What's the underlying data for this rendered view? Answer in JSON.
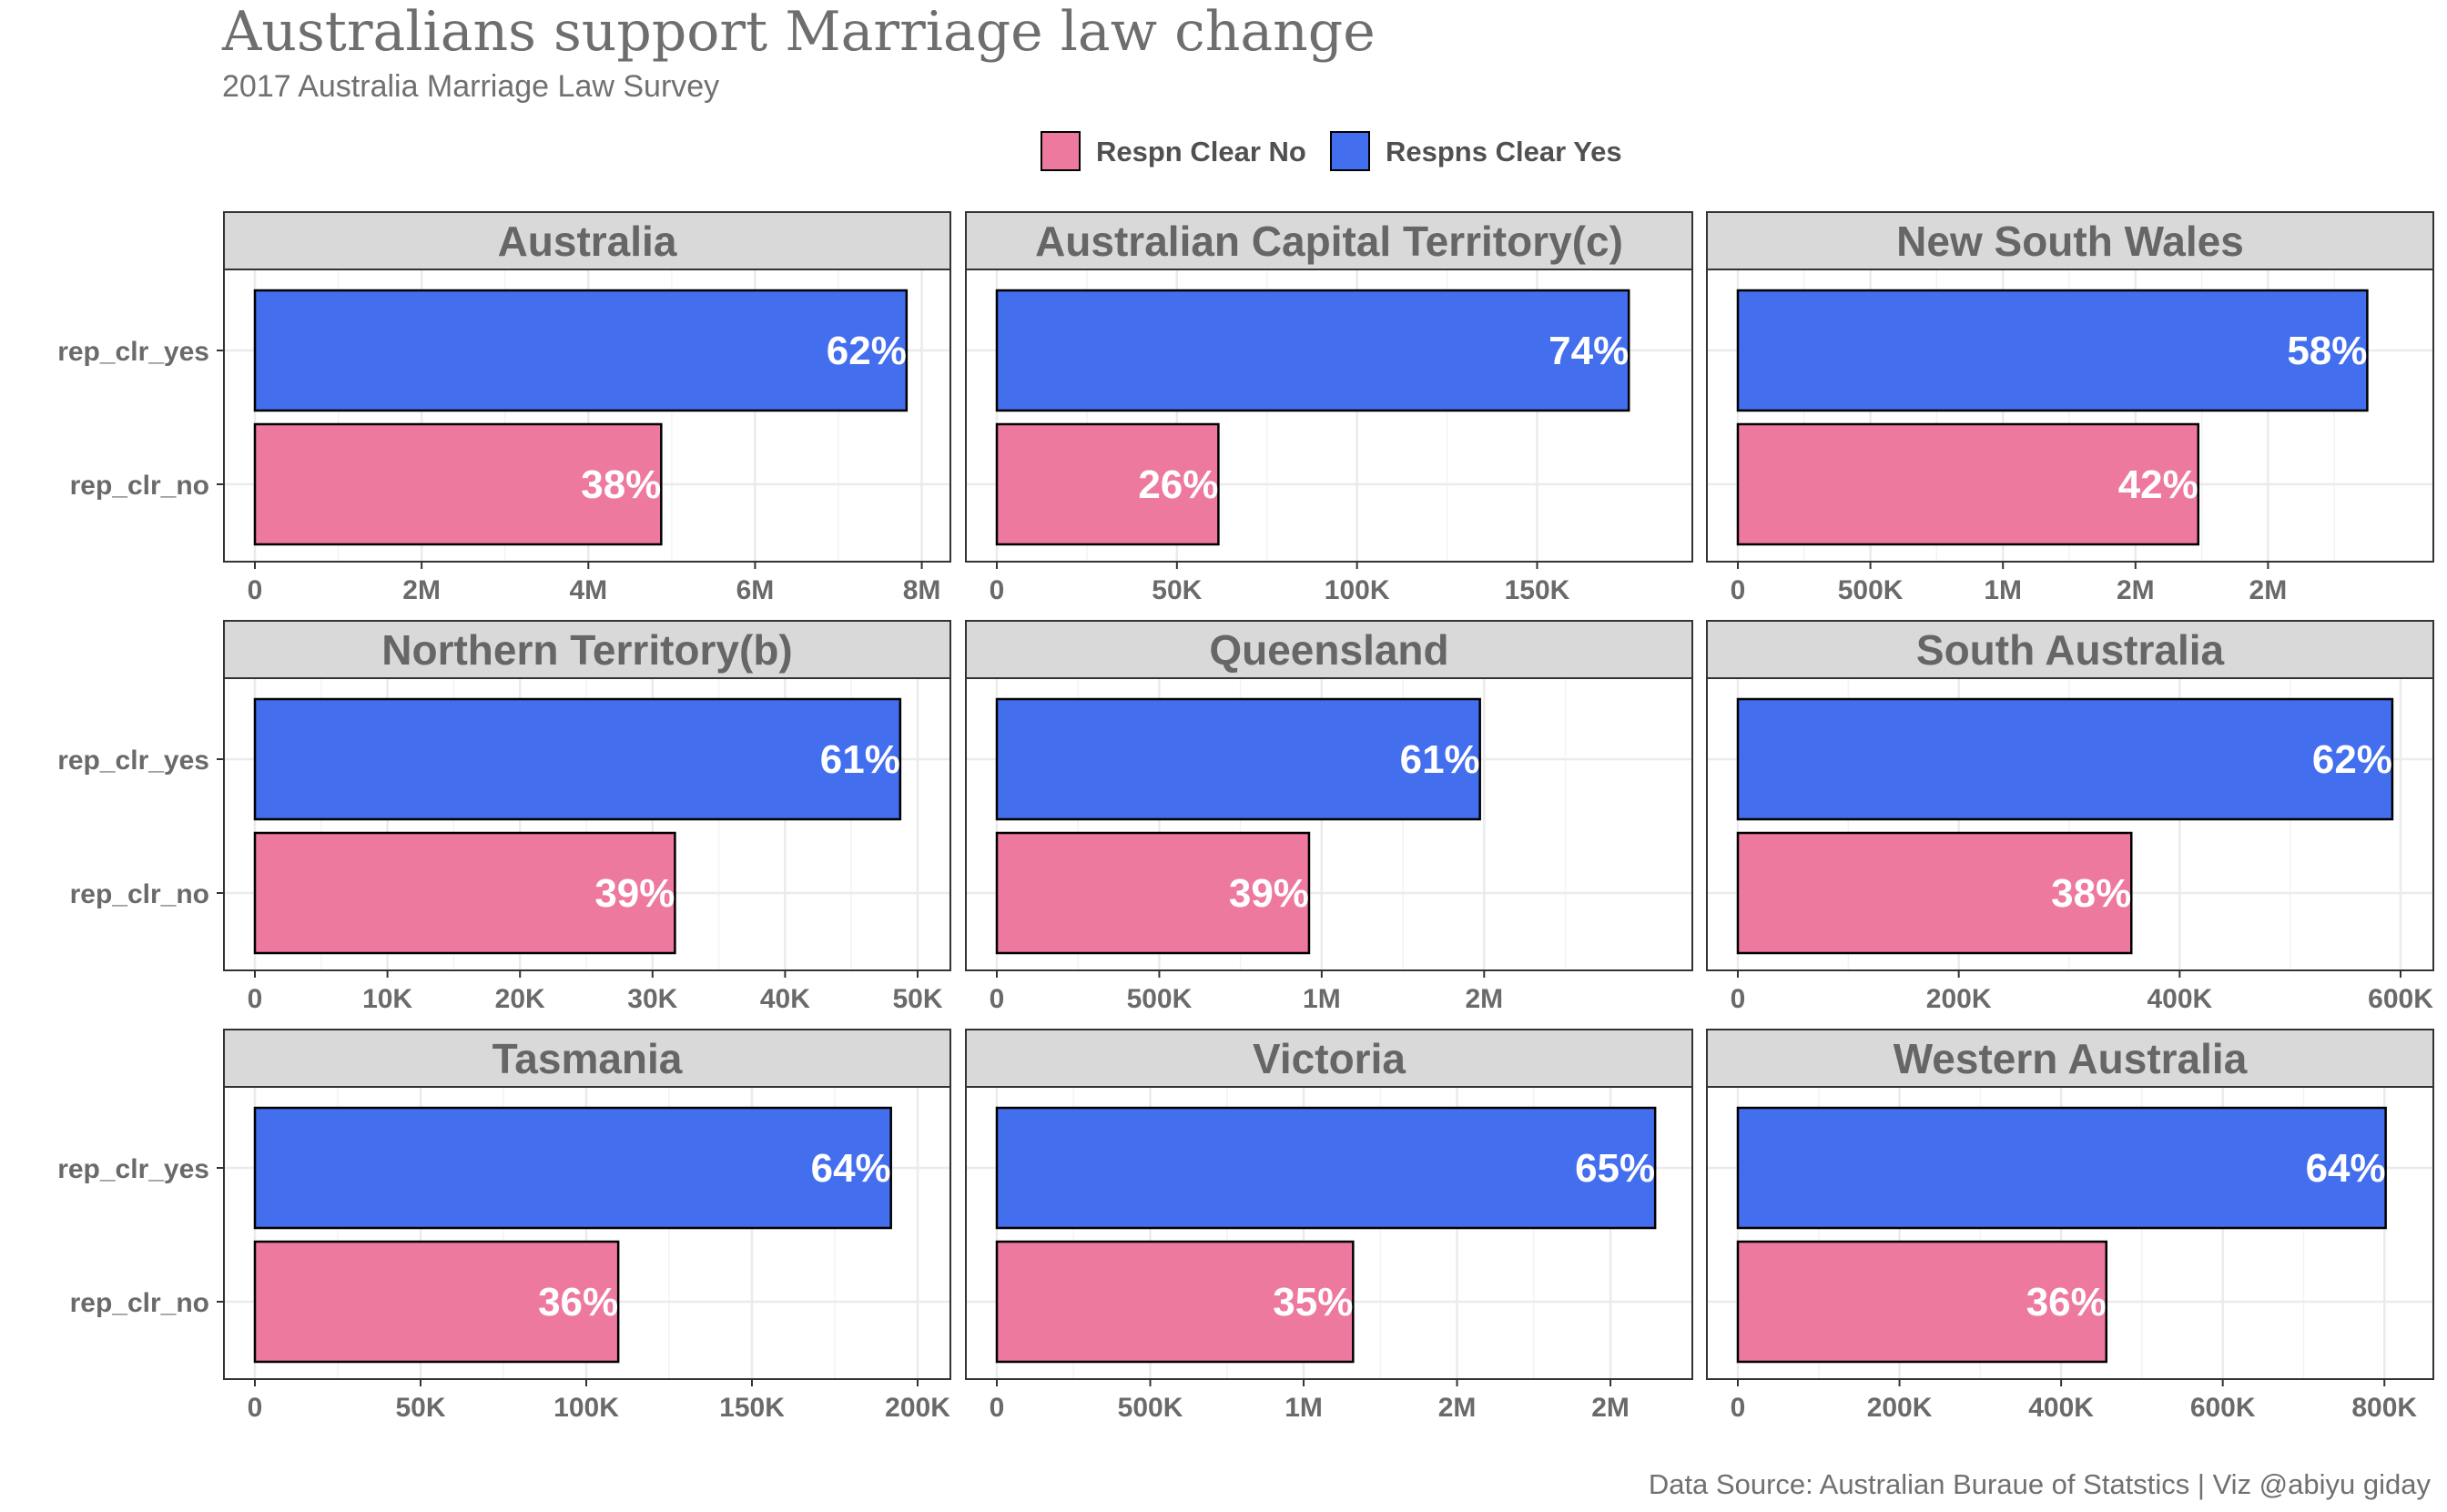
{
  "chart_data": {
    "type": "bar",
    "orientation": "horizontal",
    "title": "Australians support Marriage law change",
    "subtitle": "2017 Australia Marriage Law Survey",
    "caption": "Data Source: Australian Buraue of Statstics | Viz @abiyu giday",
    "categories": [
      "rep_clr_yes",
      "rep_clr_no"
    ],
    "legend": {
      "position": "top",
      "entries": [
        {
          "name": "Respn Clear No",
          "color": "#ee799f"
        },
        {
          "name": "Respns Clear Yes",
          "color": "#436eee"
        }
      ]
    },
    "colors": {
      "yes": "#436eee",
      "no": "#ee799f",
      "strip": "#d9d9d9",
      "grid": "#ebebeb"
    },
    "grid": true,
    "panels": [
      {
        "name": "Australia",
        "xlim": [
          0,
          7950000
        ],
        "ticks": [
          {
            "v": 0,
            "l": "0"
          },
          {
            "v": 2000000,
            "l": "2M"
          },
          {
            "v": 4000000,
            "l": "4M"
          },
          {
            "v": 6000000,
            "l": "6M"
          },
          {
            "v": 8000000,
            "l": "8M"
          }
        ],
        "minor": [
          1000000,
          3000000,
          5000000,
          7000000
        ],
        "values": [
          7817247,
          4873987
        ],
        "labels": [
          "62%",
          "38%"
        ]
      },
      {
        "name": "Australian Capital Territory(c)",
        "xlim": [
          0,
          184000
        ],
        "ticks": [
          {
            "v": 0,
            "l": "0"
          },
          {
            "v": 50000,
            "l": "50K"
          },
          {
            "v": 100000,
            "l": "100K"
          },
          {
            "v": 150000,
            "l": "150K"
          }
        ],
        "minor": [
          25000,
          75000,
          125000
        ],
        "values": [
          175459,
          61520
        ],
        "labels": [
          "74%",
          "26%"
        ]
      },
      {
        "name": "New South Wales",
        "xlim": [
          0,
          2500000
        ],
        "ticks": [
          {
            "v": 0,
            "l": "0"
          },
          {
            "v": 500000,
            "l": "500K"
          },
          {
            "v": 1000000,
            "l": "1M"
          },
          {
            "v": 1500000,
            "l": "2M"
          },
          {
            "v": 2000000,
            "l": "2M"
          }
        ],
        "minor": [
          250000,
          750000,
          1250000,
          1750000,
          2250000
        ],
        "values": [
          2374362,
          1736838
        ],
        "labels": [
          "58%",
          "42%"
        ]
      },
      {
        "name": "Northern Territory(b)",
        "xlim": [
          0,
          50000
        ],
        "ticks": [
          {
            "v": 0,
            "l": "0"
          },
          {
            "v": 10000,
            "l": "10K"
          },
          {
            "v": 20000,
            "l": "20K"
          },
          {
            "v": 30000,
            "l": "30K"
          },
          {
            "v": 40000,
            "l": "40K"
          },
          {
            "v": 50000,
            "l": "50K"
          }
        ],
        "minor": [
          5000,
          15000,
          25000,
          35000,
          45000
        ],
        "values": [
          48686,
          31690
        ],
        "labels": [
          "61%",
          "39%"
        ]
      },
      {
        "name": "Queensland",
        "xlim": [
          0,
          2040000
        ],
        "ticks": [
          {
            "v": 0,
            "l": "0"
          },
          {
            "v": 500000,
            "l": "500K"
          },
          {
            "v": 1000000,
            "l": "1M"
          },
          {
            "v": 1500000,
            "l": "2M"
          }
        ],
        "minor": [
          250000,
          750000,
          1250000,
          1750000
        ],
        "values": [
          1487060,
          961015
        ],
        "labels": [
          "61%",
          "39%"
        ]
      },
      {
        "name": "South Australia",
        "xlim": [
          0,
          600000
        ],
        "ticks": [
          {
            "v": 0,
            "l": "0"
          },
          {
            "v": 200000,
            "l": "200K"
          },
          {
            "v": 400000,
            "l": "400K"
          },
          {
            "v": 600000,
            "l": "600K"
          }
        ],
        "minor": [
          100000,
          300000,
          500000
        ],
        "values": [
          592528,
          356247
        ],
        "labels": [
          "62%",
          "38%"
        ]
      },
      {
        "name": "Tasmania",
        "xlim": [
          0,
          200000
        ],
        "ticks": [
          {
            "v": 0,
            "l": "0"
          },
          {
            "v": 50000,
            "l": "50K"
          },
          {
            "v": 100000,
            "l": "100K"
          },
          {
            "v": 150000,
            "l": "150K"
          },
          {
            "v": 200000,
            "l": "200K"
          }
        ],
        "minor": [
          25000,
          75000,
          125000,
          175000
        ],
        "values": [
          191948,
          109655
        ],
        "labels": [
          "64%",
          "36%"
        ]
      },
      {
        "name": "Victoria",
        "xlim": [
          0,
          2160000
        ],
        "ticks": [
          {
            "v": 0,
            "l": "0"
          },
          {
            "v": 500000,
            "l": "500K"
          },
          {
            "v": 1000000,
            "l": "1M"
          },
          {
            "v": 1500000,
            "l": "2M"
          },
          {
            "v": 2000000,
            "l": "2M"
          }
        ],
        "minor": [
          250000,
          750000,
          1250000,
          1750000
        ],
        "values": [
          2145629,
          1161098
        ],
        "labels": [
          "65%",
          "35%"
        ]
      },
      {
        "name": "Western Australia",
        "xlim": [
          0,
          820000
        ],
        "ticks": [
          {
            "v": 0,
            "l": "0"
          },
          {
            "v": 200000,
            "l": "200K"
          },
          {
            "v": 400000,
            "l": "400K"
          },
          {
            "v": 600000,
            "l": "600K"
          },
          {
            "v": 800000,
            "l": "800K"
          }
        ],
        "minor": [
          100000,
          300000,
          500000,
          700000
        ],
        "values": [
          801575,
          455924
        ],
        "labels": [
          "64%",
          "36%"
        ]
      }
    ]
  }
}
